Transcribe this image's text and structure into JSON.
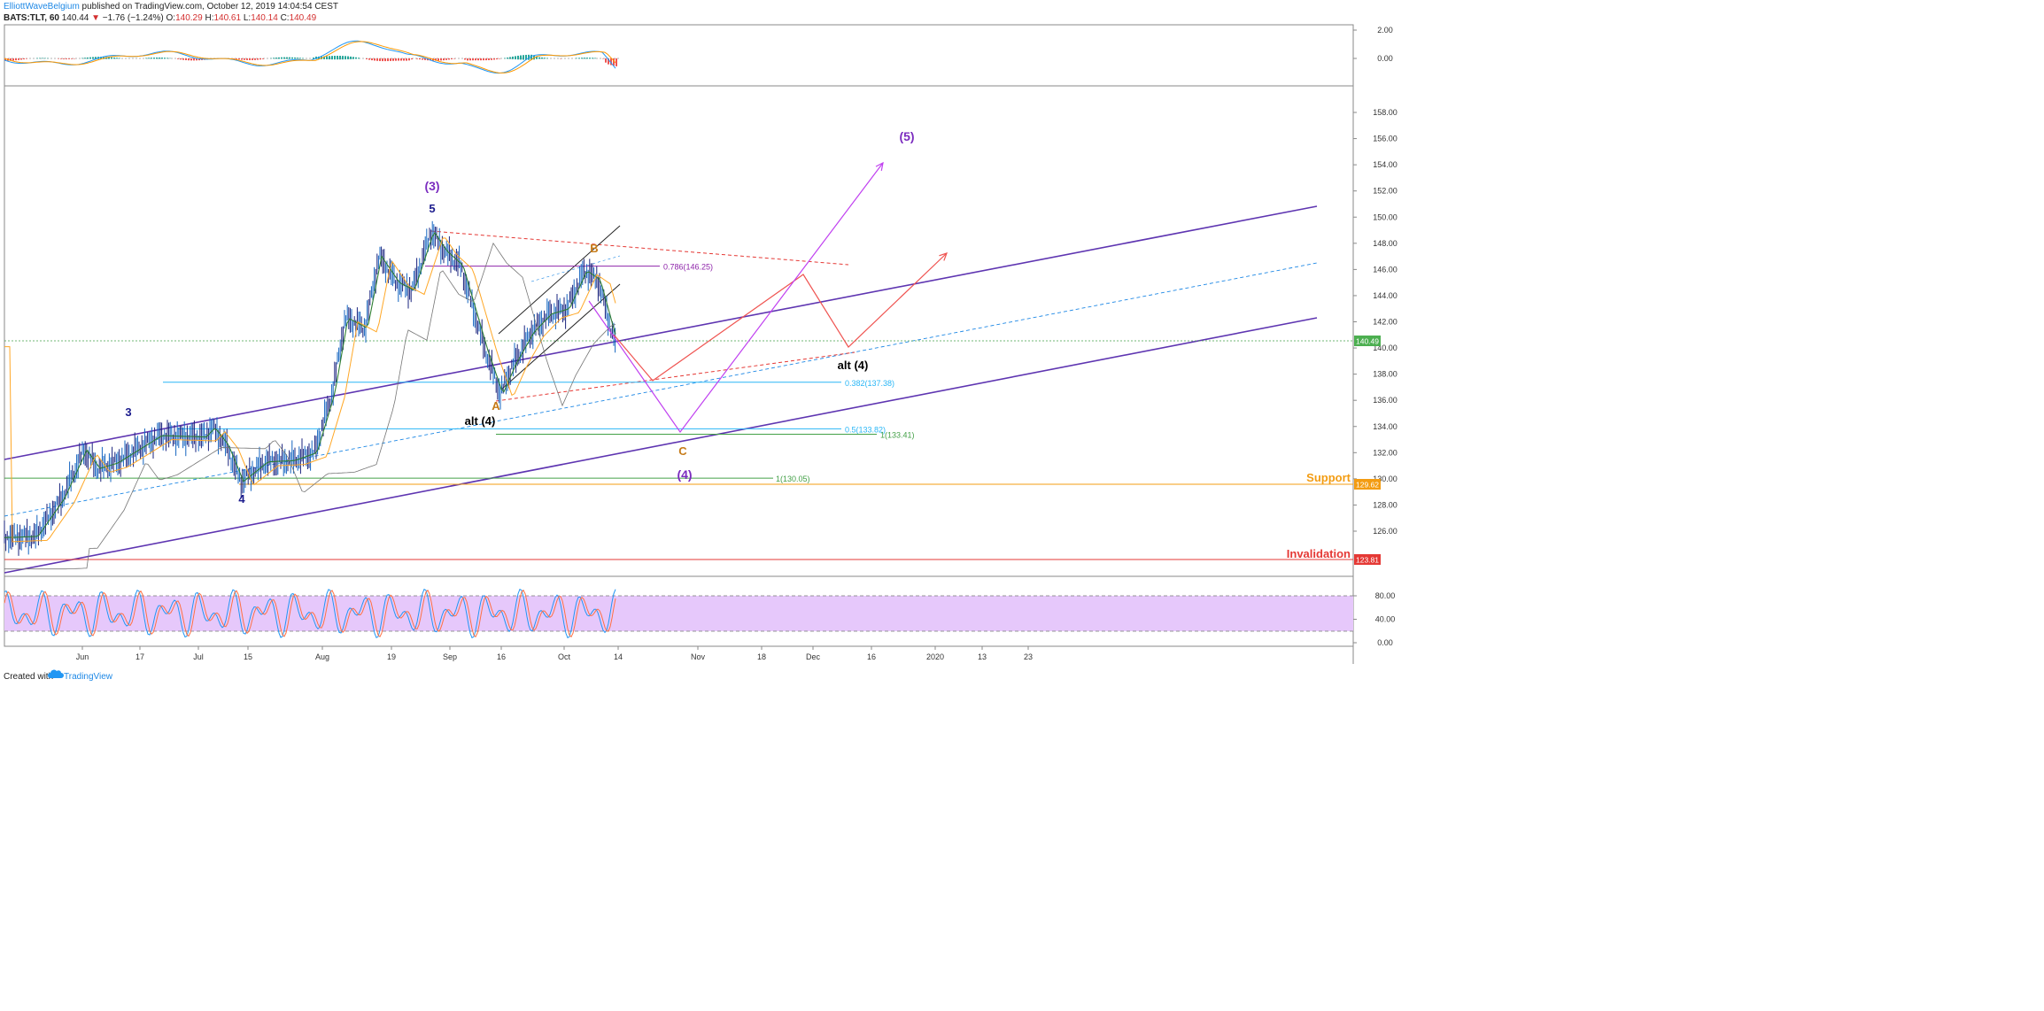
{
  "header": {
    "author": "ElliottWaveBelgium",
    "published": " published on TradingView.com, October 12, 2019 14:04:54 CEST",
    "symbol": "BATS:TLT, 60",
    "last": "140.44",
    "arrow": "▼",
    "change": "−1.76 (−1.24%)",
    "o_label": "O:",
    "o_value": "140.29",
    "h_label": "H:",
    "h_value": "140.61",
    "l_label": "L:",
    "l_value": "140.14",
    "c_label": "C:",
    "c_value": "140.49"
  },
  "footer": {
    "created_with": "Created with",
    "brand": "TradingView"
  },
  "colors": {
    "up": "#1a237e",
    "down": "#1565c0",
    "wave_blue": "#1a1a8c",
    "purple": "#7b2cbf",
    "orange": "#c67a17",
    "support": "#f39c12",
    "invalidation": "#e53935",
    "rsi_fill": "#e6c8fb"
  },
  "chart_data": [
    {
      "type": "line",
      "name": "oscillator",
      "yticks": [
        "2.00",
        "0.00"
      ],
      "ylim": [
        -1.8,
        2.2
      ]
    },
    {
      "type": "line",
      "name": "price",
      "ylim": [
        122.2,
        160.4
      ],
      "xticks": [
        "Jun",
        "17",
        "Jul",
        "15",
        "Aug",
        "19",
        "Sep",
        "16",
        "Oct",
        "14",
        "Nov",
        "18",
        "Dec",
        "16",
        "2020",
        "13",
        "23"
      ],
      "yticks": [
        "158.00",
        "156.00",
        "154.00",
        "152.00",
        "150.00",
        "148.00",
        "146.00",
        "144.00",
        "142.00",
        "140.00",
        "138.00",
        "136.00",
        "134.00",
        "132.00",
        "130.00",
        "128.00",
        "126.00"
      ],
      "last_price": "140.49",
      "price_path": [
        [
          0,
          125.5
        ],
        [
          40,
          125.6
        ],
        [
          70,
          128.5
        ],
        [
          95,
          132.2
        ],
        [
          110,
          130.8
        ],
        [
          130,
          131.2
        ],
        [
          180,
          133.3
        ],
        [
          230,
          133.2
        ],
        [
          240,
          133.9
        ],
        [
          255,
          132.6
        ],
        [
          272,
          129.8
        ],
        [
          300,
          131.3
        ],
        [
          330,
          131.4
        ],
        [
          355,
          132.0
        ],
        [
          375,
          136.5
        ],
        [
          390,
          142.3
        ],
        [
          412,
          141.5
        ],
        [
          428,
          147.0
        ],
        [
          448,
          145.0
        ],
        [
          465,
          144.4
        ],
        [
          487,
          148.9
        ],
        [
          502,
          147.4
        ],
        [
          520,
          146.3
        ],
        [
          548,
          139.8
        ],
        [
          565,
          136.5
        ],
        [
          580,
          138.8
        ],
        [
          600,
          141.2
        ],
        [
          620,
          142.6
        ],
        [
          640,
          143.0
        ],
        [
          660,
          145.9
        ],
        [
          675,
          145.2
        ],
        [
          690,
          141.5
        ],
        [
          695,
          140.4
        ]
      ],
      "wave_labels": [
        "(3)",
        "5",
        "3",
        "4",
        "B",
        "A",
        "C",
        "(4)",
        "(5)",
        "alt (4)",
        "alt (4)"
      ],
      "levels": [
        {
          "label": "0.786(146.25)",
          "value": 146.25
        },
        {
          "label": "0.382(137.38)",
          "value": 137.38
        },
        {
          "label": "0.5(133.82)",
          "value": 133.82
        },
        {
          "label": "1(133.41)",
          "value": 133.41
        },
        {
          "label": "1(130.05)",
          "value": 130.05
        }
      ],
      "support": {
        "label": "Support",
        "value": "129.62"
      },
      "invalidation": {
        "label": "Invalidation",
        "value": "123.81"
      }
    },
    {
      "type": "line",
      "name": "stochastic",
      "yticks": [
        "80.00",
        "40.00",
        "0.00"
      ],
      "ylim": [
        -8,
        100
      ],
      "bands": [
        20,
        80
      ]
    }
  ]
}
